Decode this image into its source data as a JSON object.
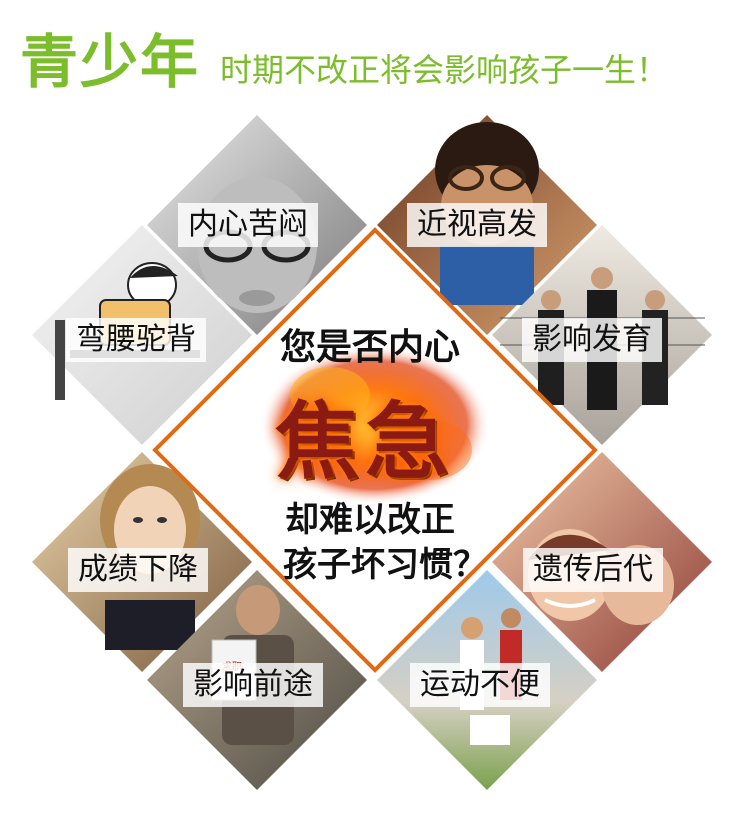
{
  "header": {
    "title_big": "青少年",
    "title_rest": "时期不改正将会影响孩子一生！"
  },
  "colors": {
    "accent_green": "#7cbd2b",
    "frame_orange": "#e06a14",
    "fire_red": "#8a1a12"
  },
  "center": {
    "line1": "您是否内心",
    "fire_word": "焦急",
    "line2": "却难以改正",
    "line3": "孩子坏习惯？"
  },
  "tiles": [
    {
      "label": "内心苦闷",
      "icon": "worried-child-photo"
    },
    {
      "label": "近视高发",
      "icon": "child-glasses-photo"
    },
    {
      "label": "弯腰驼背",
      "icon": "hunched-student-drawing"
    },
    {
      "label": "影响发育",
      "icon": "height-lineup-photo"
    },
    {
      "label": "成绩下降",
      "icon": "thinking-girl-photo"
    },
    {
      "label": "遗传后代",
      "icon": "mother-child-photo"
    },
    {
      "label": "影响前途",
      "icon": "job-seeker-photo"
    },
    {
      "label": "运动不便",
      "icon": "sports-photo"
    }
  ]
}
